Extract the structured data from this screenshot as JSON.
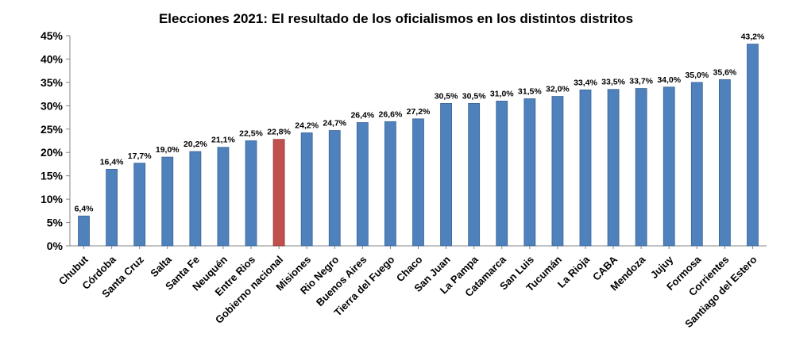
{
  "chart_data": {
    "type": "bar",
    "title": "Elecciones 2021: El resultado de los oficialismos en los distintos distritos",
    "xlabel": "",
    "ylabel": "",
    "ylim": [
      0,
      45
    ],
    "yticks": [
      "0%",
      "5%",
      "10%",
      "15%",
      "20%",
      "25%",
      "30%",
      "35%",
      "40%",
      "45%"
    ],
    "grid": false,
    "legend": "none",
    "categories": [
      "Chubut",
      "Córdoba",
      "Santa Cruz",
      "Salta",
      "Santa Fe",
      "Neuquén",
      "Entre Rios",
      "Gobierno nacional",
      "Misiones",
      "Rio Negro",
      "Buenos Aires",
      "Tierra del Fuego",
      "Chaco",
      "San Juan",
      "La Pampa",
      "Catamarca",
      "San Luis",
      "Tucumán",
      "La Rioja",
      "CABA",
      "Mendoza",
      "Jujuy",
      "Formosa",
      "Corrientes",
      "Santiago del Estero"
    ],
    "values": [
      6.4,
      16.4,
      17.7,
      19.0,
      20.2,
      21.1,
      22.5,
      22.8,
      24.2,
      24.7,
      26.4,
      26.6,
      27.2,
      30.5,
      30.5,
      31.0,
      31.5,
      32.0,
      33.4,
      33.5,
      33.7,
      34.0,
      35.0,
      35.6,
      43.2
    ],
    "data_labels": [
      "6,4%",
      "16,4%",
      "17,7%",
      "19,0%",
      "20,2%",
      "21,1%",
      "22,5%",
      "22,8%",
      "24,2%",
      "24,7%",
      "26,4%",
      "26,6%",
      "27,2%",
      "30,5%",
      "30,5%",
      "31,0%",
      "31,5%",
      "32,0%",
      "33,4%",
      "33,5%",
      "33,7%",
      "34,0%",
      "35,0%",
      "35,6%",
      "43,2%"
    ],
    "colors": {
      "default": "#4F81BD",
      "highlight": "#C0504D",
      "highlight_category": "Gobierno nacional"
    }
  }
}
